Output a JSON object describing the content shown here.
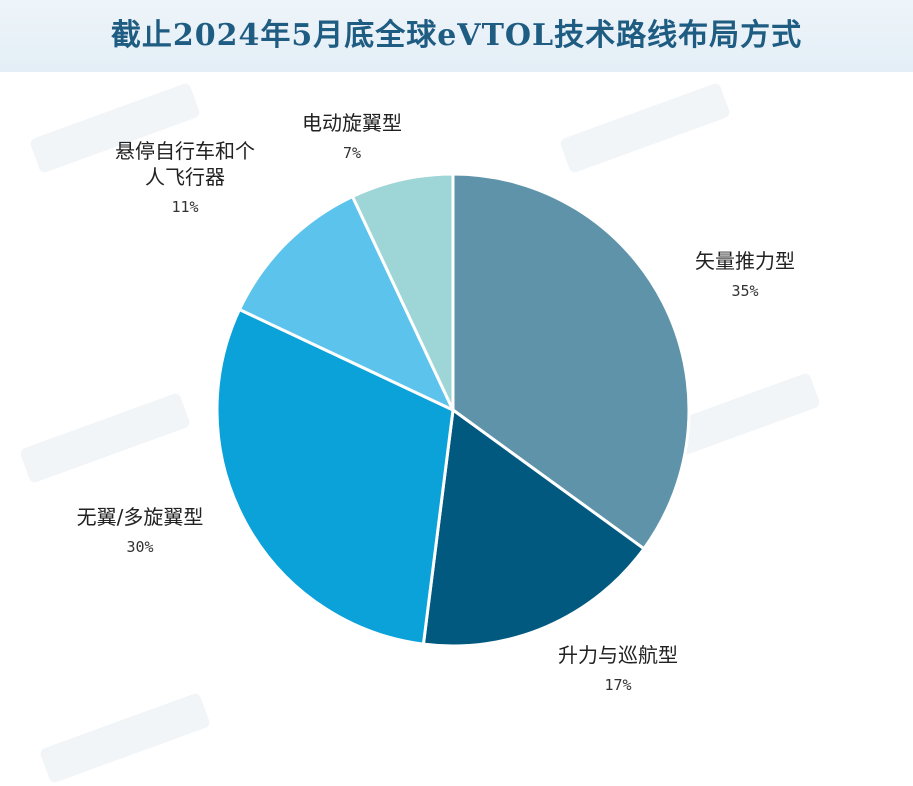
{
  "title": "截止2024年5月底全球eVTOL技术路线布局方式",
  "chart_data": {
    "type": "pie",
    "title": "截止2024年5月底全球eVTOL技术路线布局方式",
    "slices": [
      {
        "name": "矢量推力型",
        "value": 35,
        "value_label": "35%",
        "color": "#5e93aa",
        "label_lines": [
          "矢量推力型"
        ]
      },
      {
        "name": "升力与巡航型",
        "value": 17,
        "value_label": "17%",
        "color": "#01597f",
        "label_lines": [
          "升力与巡航型"
        ]
      },
      {
        "name": "无翼/多旋翼型",
        "value": 30,
        "value_label": "30%",
        "color": "#0aa2d9",
        "label_lines": [
          "无翼/多旋翼型"
        ]
      },
      {
        "name": "悬停自行车和个人飞行器",
        "value": 11,
        "value_label": "11%",
        "color": "#5cc3ed",
        "label_lines": [
          "悬停自行车和个",
          "人飞行器"
        ]
      },
      {
        "name": "电动旋翼型",
        "value": 7,
        "value_label": "7%",
        "color": "#9ed5d7",
        "label_lines": [
          "电动旋翼型"
        ]
      }
    ],
    "start_angle_deg": 0,
    "direction": "clockwise",
    "legend": "none"
  }
}
